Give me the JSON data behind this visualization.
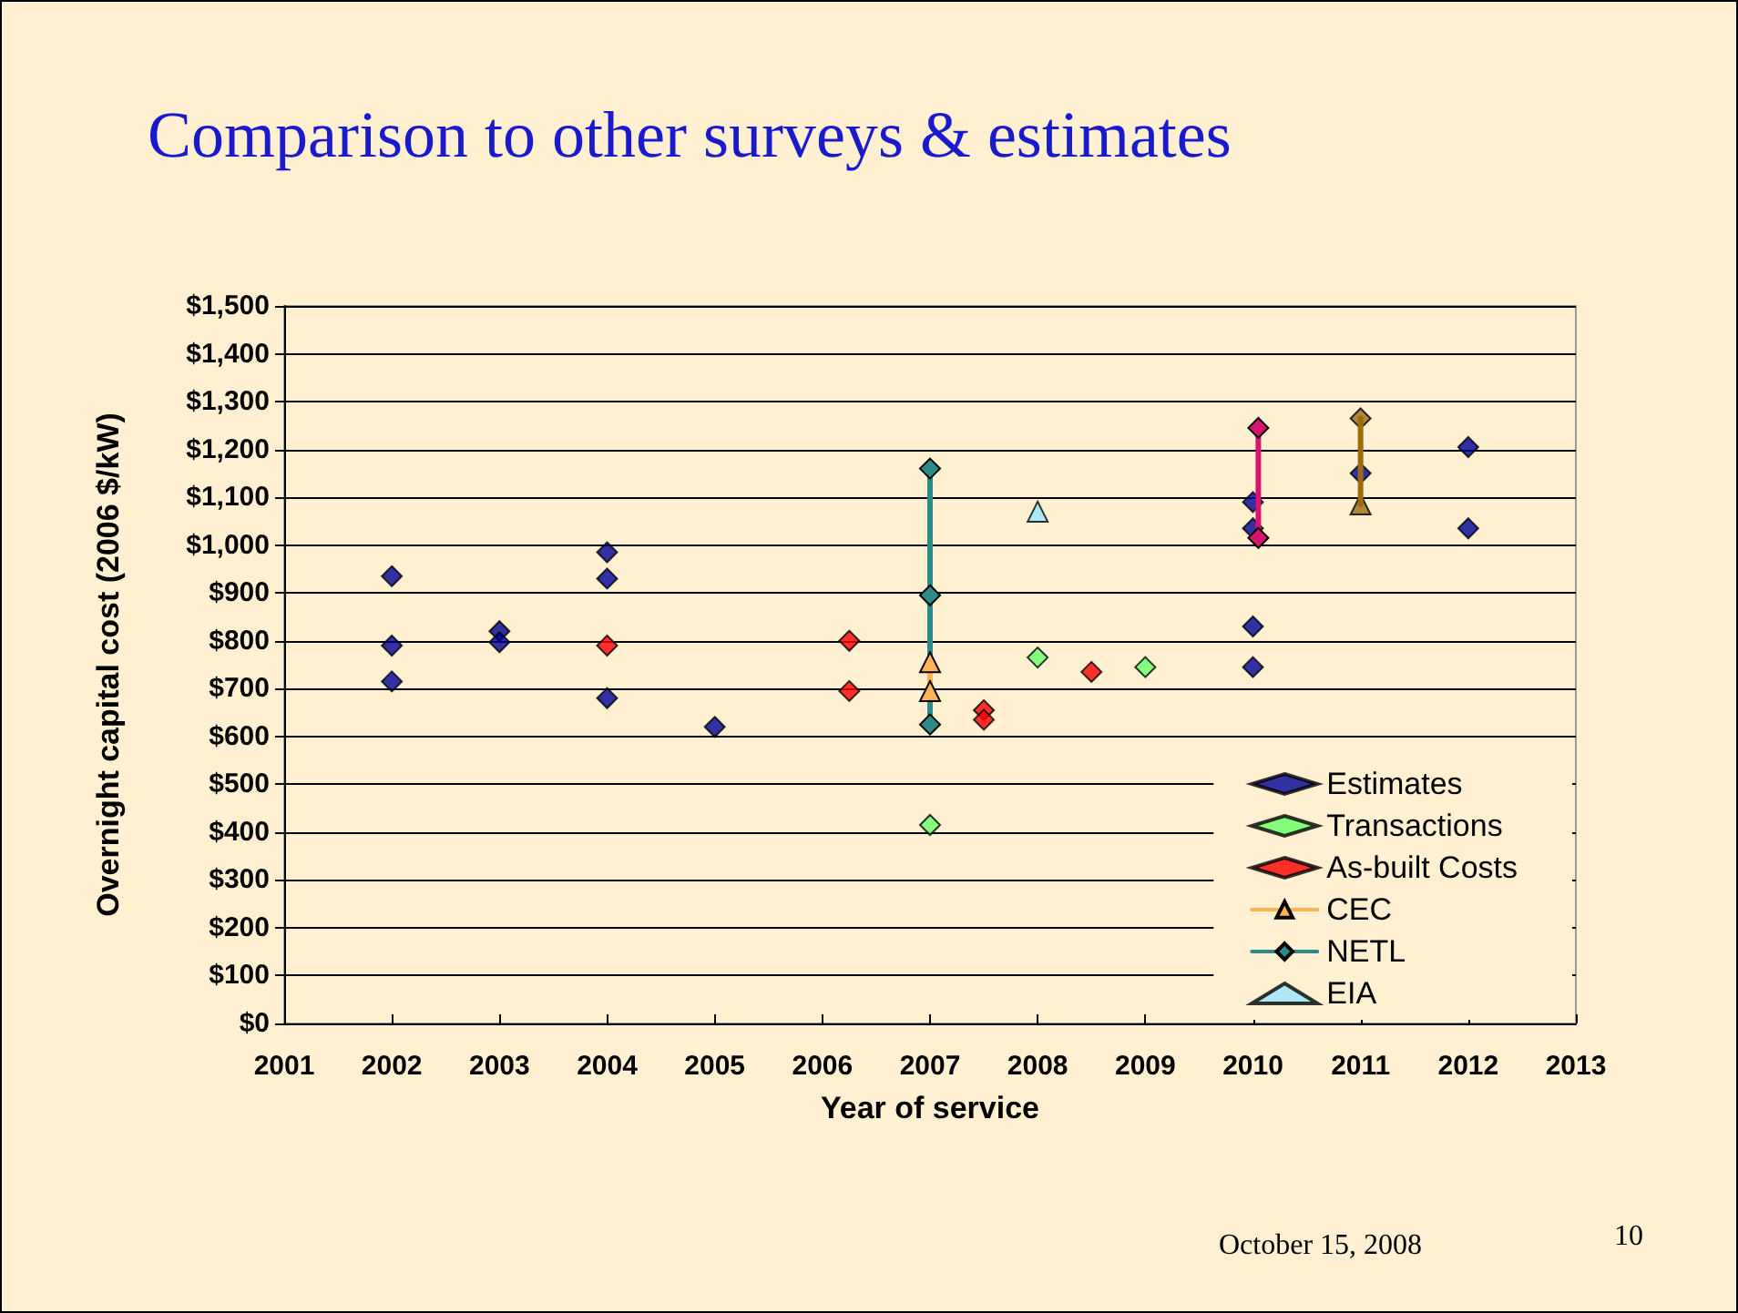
{
  "chart_data": {
    "type": "scatter",
    "title": "Comparison to other surveys & estimates",
    "xlabel": "Year of service",
    "ylabel": "Overnight capital cost (2006 $/kW)",
    "xlim": [
      2001,
      2013
    ],
    "xticks": [
      2001,
      2002,
      2003,
      2004,
      2005,
      2006,
      2007,
      2008,
      2009,
      2010,
      2011,
      2012,
      2013
    ],
    "ylim": [
      0,
      1500
    ],
    "yticks": [
      {
        "value": 0,
        "label": "$0"
      },
      {
        "value": 100,
        "label": "$100"
      },
      {
        "value": 200,
        "label": "$200"
      },
      {
        "value": 300,
        "label": "$300"
      },
      {
        "value": 400,
        "label": "$400"
      },
      {
        "value": 500,
        "label": "$500"
      },
      {
        "value": 600,
        "label": "$600"
      },
      {
        "value": 700,
        "label": "$700"
      },
      {
        "value": 800,
        "label": "$800"
      },
      {
        "value": 900,
        "label": "$900"
      },
      {
        "value": 1000,
        "label": "$1,000"
      },
      {
        "value": 1100,
        "label": "$1,100"
      },
      {
        "value": 1200,
        "label": "$1,200"
      },
      {
        "value": 1300,
        "label": "$1,300"
      },
      {
        "value": 1400,
        "label": "$1,400"
      },
      {
        "value": 1500,
        "label": "$1,500"
      }
    ],
    "grid": "y",
    "legend": "bottom right",
    "series": [
      {
        "name": "Estimates",
        "marker": "diamond",
        "color": "#000099",
        "x": [
          2002,
          2002,
          2002,
          2003,
          2003,
          2004,
          2004,
          2004,
          2005,
          2010,
          2010,
          2010,
          2010,
          2011,
          2012,
          2012
        ],
        "values": [
          935,
          790,
          715,
          820,
          797,
          985,
          930,
          680,
          620,
          1090,
          1035,
          830,
          745,
          1150,
          1205,
          1035
        ]
      },
      {
        "name": "Transactions",
        "marker": "diamond",
        "color": "#66ff66",
        "x": [
          2007,
          2008,
          2009
        ],
        "values": [
          415,
          765,
          745
        ]
      },
      {
        "name": "As-built Costs",
        "marker": "diamond",
        "color": "#ff0000",
        "x": [
          2004,
          2006.25,
          2006.25,
          2007.5,
          2007.5,
          2008.5
        ],
        "values": [
          790,
          800,
          695,
          655,
          635,
          735
        ]
      },
      {
        "type": "line",
        "marker": "diamond",
        "line_style": "solid",
        "color": "#d6156f",
        "x": [
          2010.05,
          2010.05
        ],
        "values": [
          1245,
          1015
        ]
      },
      {
        "name": "CEC",
        "type": "line",
        "marker": "triangle",
        "line_style": "solid",
        "color": "#ffb355",
        "x": [
          2007,
          2007
        ],
        "values": [
          755,
          695
        ]
      },
      {
        "name": "NETL",
        "type": "line",
        "marker": "diamond",
        "line_style": "solid",
        "color": "#2e8b87",
        "x": [
          2007,
          2007,
          2007
        ],
        "values": [
          1160,
          895,
          625
        ]
      },
      {
        "name": "EIA",
        "marker": "triangle",
        "color": "#99e6ff",
        "x": [
          2008
        ],
        "values": [
          1070
        ]
      },
      {
        "type": "line",
        "marker": "none",
        "line_style": "solid",
        "color": "#9c6a0f",
        "x": [
          2011,
          2011
        ],
        "values": [
          1265,
          1085
        ]
      },
      {
        "type": "scatter",
        "marker": "diamond",
        "color": "#9c6a0f",
        "x": [
          2011
        ],
        "values": [
          1265
        ]
      },
      {
        "type": "scatter",
        "marker": "triangle",
        "color": "#9c6a0f",
        "x": [
          2011
        ],
        "values": [
          1085
        ]
      }
    ],
    "annotations": [
      "October 15, 2008",
      "10"
    ]
  }
}
